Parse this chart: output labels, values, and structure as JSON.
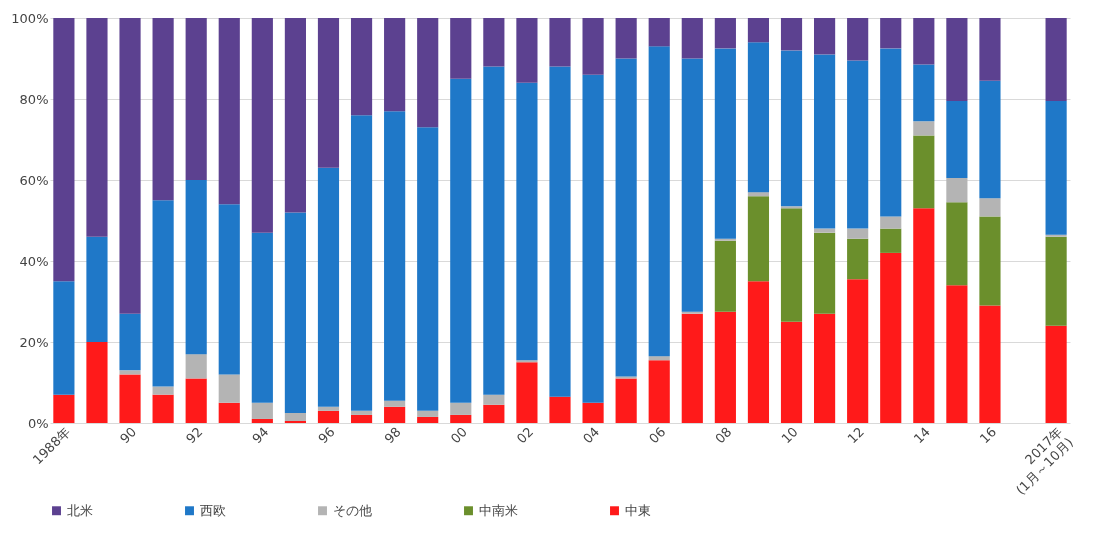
{
  "chart_data": {
    "type": "bar",
    "stacked": true,
    "categories": [
      "1988年",
      null,
      "90",
      null,
      "92",
      null,
      "94",
      null,
      "96",
      null,
      "98",
      null,
      "00",
      null,
      "02",
      null,
      "04",
      null,
      "06",
      null,
      "08",
      null,
      "10",
      null,
      "12",
      null,
      "14",
      null,
      "16",
      null,
      "2017年\n(1月～10月)"
    ],
    "ylim": [
      0,
      100
    ],
    "yticks": [
      {
        "value": 0,
        "label": "0%"
      },
      {
        "value": 20,
        "label": "20%"
      },
      {
        "value": 40,
        "label": "40%"
      },
      {
        "value": 60,
        "label": "60%"
      },
      {
        "value": 80,
        "label": "80%"
      },
      {
        "value": 100,
        "label": "100%"
      }
    ],
    "grid": "y",
    "legend": "bottom",
    "series": [
      {
        "name": "中東",
        "color": "#ff1a1a",
        "values": [
          7,
          20,
          12,
          7,
          11,
          5,
          1,
          0.5,
          3,
          2,
          4,
          1.5,
          2,
          4.5,
          15,
          6.5,
          5,
          11,
          15.5,
          27,
          27.5,
          35,
          25,
          27,
          35.5,
          42,
          53,
          34,
          29,
          null,
          24
        ]
      },
      {
        "name": "中南米",
        "color": "#6b8f2c",
        "values": [
          0,
          0,
          0,
          0,
          0,
          0,
          0,
          0,
          0,
          0,
          0,
          0,
          0,
          0,
          0,
          0,
          0,
          0,
          0,
          0,
          17.5,
          21,
          28,
          20,
          10,
          6,
          18,
          20.5,
          22,
          null,
          22
        ]
      },
      {
        "name": "その他",
        "color": "#b4b4b4",
        "values": [
          0,
          0,
          1,
          2,
          6,
          7,
          4,
          2,
          1,
          1,
          1.5,
          1.5,
          3,
          2.5,
          0.5,
          0,
          0,
          0.5,
          1,
          0.5,
          0.5,
          1,
          0.5,
          1,
          2.5,
          3,
          3.5,
          6,
          4.5,
          null,
          0.5
        ]
      },
      {
        "name": "西欧",
        "color": "#1f78c8",
        "values": [
          28,
          26,
          14,
          46,
          43,
          42,
          42,
          49.5,
          59,
          73,
          71.5,
          70,
          80,
          81,
          68.5,
          81.5,
          81,
          78.5,
          76.5,
          62.5,
          47,
          37,
          38.5,
          43,
          41.5,
          41.5,
          14,
          19,
          29,
          null,
          33
        ]
      },
      {
        "name": "北米",
        "color": "#5c4190",
        "values": [
          65,
          54,
          73,
          45,
          40,
          46,
          53,
          48,
          37,
          24,
          23,
          27,
          15,
          12,
          16,
          12,
          14,
          10,
          7,
          10,
          7.5,
          6,
          8,
          9,
          10.5,
          7.5,
          11.5,
          20.5,
          15.5,
          null,
          20.5
        ]
      }
    ]
  }
}
